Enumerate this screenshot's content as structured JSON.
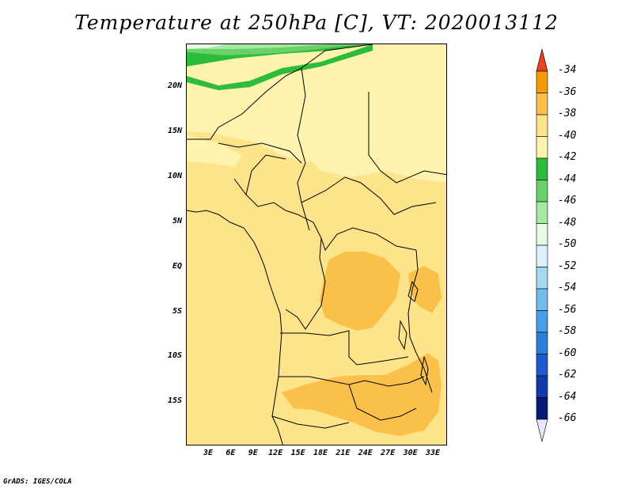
{
  "title": "Temperature at 250hPa [C], VT: 2020013112",
  "credit": "GrADS: IGES/COLA",
  "map": {
    "lat_labels": [
      "20N",
      "15N",
      "10N",
      "5N",
      "EQ",
      "5S",
      "10S",
      "15S"
    ],
    "lon_labels": [
      "3E",
      "6E",
      "9E",
      "12E",
      "15E",
      "18E",
      "21E",
      "24E",
      "27E",
      "30E",
      "33E"
    ],
    "colors": {
      "band_minus40": "#fde38a",
      "band_minus42": "#fff3b0",
      "band_minus38": "#fbc04a",
      "band_minus44": "#2ebd3a",
      "band_minus46": "#6ad06a",
      "band_minus48": "#a7e8a0",
      "band_minus50": "#e6fae4"
    }
  },
  "colorbar": {
    "labels": [
      "-34",
      "-36",
      "-38",
      "-40",
      "-42",
      "-44",
      "-46",
      "-48",
      "-50",
      "-52",
      "-54",
      "-56",
      "-58",
      "-60",
      "-62",
      "-64",
      "-66"
    ],
    "colors": [
      "#f05a0a",
      "#f59a0a",
      "#fbc04a",
      "#fde38a",
      "#fff3b0",
      "#2ebd3a",
      "#6ad06a",
      "#a7e8a0",
      "#e6fae4",
      "#d8f2fb",
      "#a6d8f2",
      "#72bced",
      "#4a9ee6",
      "#2d7ddb",
      "#1d5ccc",
      "#103ba8",
      "#0a1a78"
    ],
    "over_color": "#e8431e",
    "under_color": "#e6e6ff"
  }
}
